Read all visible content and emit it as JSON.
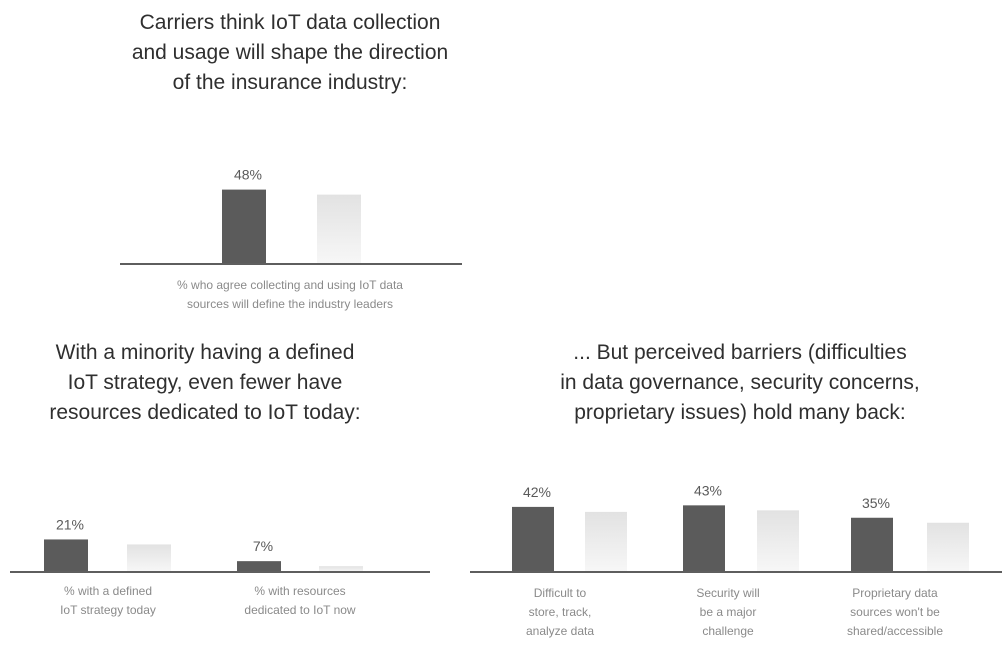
{
  "colors": {
    "dark_bar": "#5b5b5b",
    "light_bar_top": "#e2e2e2",
    "light_bar_bottom": "#f7f7f7",
    "axis": "#5e5e5e",
    "title_text": "#2f2f2f",
    "label_text": "#8a8a8a"
  },
  "chart_data": [
    {
      "type": "bar",
      "title": "Carriers think IoT data collection\nand usage will shape the direction\nof the insurance industry:",
      "categories": [
        "% who agree collecting and using IoT data\nsources will define the industry leaders"
      ],
      "values": [
        48
      ],
      "value_labels": [
        "48%"
      ],
      "ylim": [
        0,
        100
      ],
      "grid": false
    },
    {
      "type": "bar",
      "title": "With a minority having a defined\nIoT strategy, even fewer have\nresources dedicated to IoT today:",
      "categories": [
        "% with a defined\nIoT strategy today",
        "% with resources\ndedicated to IoT now"
      ],
      "values": [
        21,
        7
      ],
      "value_labels": [
        "21%",
        "7%"
      ],
      "ylim": [
        0,
        100
      ],
      "grid": false
    },
    {
      "type": "bar",
      "title": "... But perceived barriers (difficulties\nin data governance, security concerns,\nproprietary issues) hold many back:",
      "categories": [
        "Difficult to\nstore, track,\nanalyze data",
        "Security will\nbe a major\nchallenge",
        "Proprietary data\nsources won't be\nshared/accessible"
      ],
      "values": [
        42,
        43,
        35
      ],
      "value_labels": [
        "42%",
        "43%",
        "35%"
      ],
      "ylim": [
        0,
        100
      ],
      "grid": false
    }
  ]
}
